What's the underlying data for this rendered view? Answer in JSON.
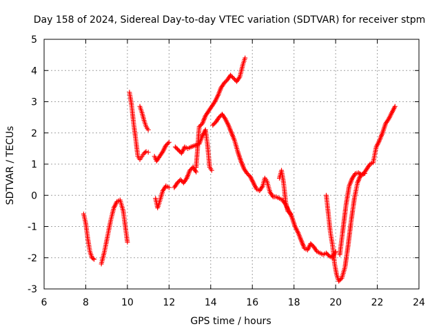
{
  "chart_data": {
    "type": "scatter",
    "title": "Day 158 of 2024, Sidereal Day-to-day VTEC variation (SDTVAR) for receiver stpm",
    "xlabel": "GPS time / hours",
    "ylabel": "SDTVAR / TECUs",
    "xlim": [
      6,
      24
    ],
    "ylim": [
      -3,
      5
    ],
    "xticks": [
      "6",
      "8",
      "10",
      "12",
      "14",
      "16",
      "18",
      "20",
      "22",
      "24"
    ],
    "yticks": [
      "-3",
      "-2",
      "-1",
      "0",
      "1",
      "2",
      "3",
      "4",
      "5"
    ],
    "grid": true,
    "marker": "plus",
    "color": "#ff0000",
    "series": [
      {
        "name": "stpm",
        "segments": [
          [
            [
              7.9,
              -0.6
            ],
            [
              8.0,
              -0.9
            ],
            [
              8.1,
              -1.4
            ],
            [
              8.2,
              -1.8
            ],
            [
              8.3,
              -2.0
            ],
            [
              8.4,
              -2.05
            ]
          ],
          [
            [
              8.75,
              -2.2
            ],
            [
              8.9,
              -1.8
            ],
            [
              9.05,
              -1.3
            ],
            [
              9.2,
              -0.8
            ],
            [
              9.35,
              -0.4
            ],
            [
              9.5,
              -0.2
            ],
            [
              9.65,
              -0.15
            ],
            [
              9.8,
              -0.5
            ],
            [
              9.9,
              -1.0
            ],
            [
              10.0,
              -1.5
            ]
          ],
          [
            [
              10.1,
              3.3
            ],
            [
              10.2,
              2.9
            ],
            [
              10.3,
              2.3
            ],
            [
              10.4,
              1.8
            ],
            [
              10.5,
              1.25
            ],
            [
              10.6,
              1.15
            ],
            [
              10.7,
              1.25
            ],
            [
              10.8,
              1.35
            ],
            [
              10.9,
              1.4
            ],
            [
              11.0,
              1.38
            ]
          ],
          [
            [
              10.6,
              2.85
            ],
            [
              10.7,
              2.65
            ],
            [
              10.8,
              2.4
            ],
            [
              10.9,
              2.2
            ],
            [
              11.0,
              2.1
            ]
          ],
          [
            [
              11.35,
              -0.1
            ],
            [
              11.45,
              -0.4
            ],
            [
              11.55,
              -0.2
            ],
            [
              11.7,
              0.15
            ],
            [
              11.85,
              0.3
            ],
            [
              12.0,
              0.25
            ]
          ],
          [
            [
              11.3,
              1.25
            ],
            [
              11.4,
              1.1
            ],
            [
              11.55,
              1.25
            ],
            [
              11.7,
              1.4
            ],
            [
              11.85,
              1.6
            ],
            [
              12.0,
              1.7
            ]
          ],
          [
            [
              12.25,
              0.25
            ],
            [
              12.4,
              0.4
            ],
            [
              12.55,
              0.5
            ],
            [
              12.7,
              0.4
            ],
            [
              12.85,
              0.55
            ],
            [
              13.0,
              0.8
            ],
            [
              13.15,
              0.9
            ],
            [
              13.3,
              0.75
            ]
          ],
          [
            [
              12.3,
              1.55
            ],
            [
              12.45,
              1.45
            ],
            [
              12.6,
              1.35
            ],
            [
              12.75,
              1.55
            ],
            [
              12.9,
              1.5
            ],
            [
              13.05,
              1.55
            ],
            [
              13.25,
              1.6
            ],
            [
              13.45,
              1.65
            ],
            [
              13.6,
              1.9
            ],
            [
              13.75,
              2.1
            ],
            [
              13.85,
              1.6
            ],
            [
              13.95,
              0.9
            ],
            [
              14.05,
              0.8
            ]
          ],
          [
            [
              13.3,
              0.9
            ],
            [
              13.45,
              2.2
            ],
            [
              13.6,
              2.3
            ],
            [
              13.75,
              2.55
            ],
            [
              13.9,
              2.7
            ],
            [
              14.05,
              2.85
            ],
            [
              14.2,
              3.0
            ],
            [
              14.35,
              3.2
            ],
            [
              14.5,
              3.45
            ],
            [
              14.65,
              3.6
            ],
            [
              14.8,
              3.7
            ],
            [
              14.95,
              3.85
            ],
            [
              15.1,
              3.75
            ],
            [
              15.25,
              3.65
            ],
            [
              15.4,
              3.8
            ],
            [
              15.55,
              4.2
            ],
            [
              15.65,
              4.4
            ]
          ],
          [
            [
              14.1,
              2.25
            ],
            [
              14.25,
              2.35
            ],
            [
              14.4,
              2.5
            ],
            [
              14.55,
              2.6
            ],
            [
              14.7,
              2.45
            ],
            [
              14.85,
              2.25
            ],
            [
              15.0,
              2.0
            ],
            [
              15.15,
              1.75
            ],
            [
              15.3,
              1.4
            ],
            [
              15.45,
              1.1
            ],
            [
              15.6,
              0.85
            ],
            [
              15.75,
              0.7
            ],
            [
              15.9,
              0.6
            ],
            [
              16.05,
              0.4
            ],
            [
              16.2,
              0.2
            ],
            [
              16.35,
              0.15
            ],
            [
              16.5,
              0.3
            ],
            [
              16.6,
              0.55
            ],
            [
              16.7,
              0.45
            ],
            [
              16.85,
              0.1
            ],
            [
              17.0,
              -0.05
            ],
            [
              17.15,
              -0.05
            ],
            [
              17.3,
              -0.1
            ],
            [
              17.45,
              -0.15
            ],
            [
              17.6,
              -0.3
            ],
            [
              17.75,
              -0.5
            ],
            [
              17.9,
              -0.7
            ],
            [
              18.05,
              -1.0
            ],
            [
              18.2,
              -1.2
            ],
            [
              18.35,
              -1.45
            ],
            [
              18.5,
              -1.7
            ],
            [
              18.65,
              -1.75
            ],
            [
              18.8,
              -1.55
            ],
            [
              18.95,
              -1.65
            ],
            [
              19.1,
              -1.8
            ],
            [
              19.25,
              -1.85
            ],
            [
              19.4,
              -1.9
            ],
            [
              19.55,
              -1.85
            ],
            [
              19.7,
              -1.95
            ],
            [
              19.85,
              -2.0
            ],
            [
              20.0,
              -1.8
            ]
          ],
          [
            [
              17.3,
              0.55
            ],
            [
              17.4,
              0.8
            ],
            [
              17.5,
              0.4
            ],
            [
              17.6,
              -0.2
            ],
            [
              17.7,
              -0.5
            ],
            [
              17.85,
              -0.6
            ]
          ],
          [
            [
              19.55,
              0.0
            ],
            [
              19.65,
              -0.6
            ],
            [
              19.75,
              -1.2
            ],
            [
              19.85,
              -1.6
            ],
            [
              19.95,
              -2.2
            ],
            [
              20.05,
              -2.55
            ],
            [
              20.15,
              -2.75
            ],
            [
              20.3,
              -2.65
            ],
            [
              20.45,
              -2.3
            ],
            [
              20.6,
              -1.6
            ],
            [
              20.75,
              -0.8
            ],
            [
              20.9,
              -0.1
            ],
            [
              21.05,
              0.4
            ],
            [
              21.2,
              0.65
            ],
            [
              21.35,
              0.7
            ],
            [
              21.5,
              0.85
            ],
            [
              21.65,
              1.0
            ],
            [
              21.8,
              1.05
            ],
            [
              21.95,
              1.55
            ],
            [
              22.1,
              1.75
            ],
            [
              22.25,
              2.0
            ],
            [
              22.4,
              2.3
            ],
            [
              22.55,
              2.45
            ],
            [
              22.7,
              2.65
            ],
            [
              22.85,
              2.85
            ]
          ],
          [
            [
              20.2,
              -1.9
            ],
            [
              20.35,
              -1.1
            ],
            [
              20.5,
              -0.3
            ],
            [
              20.65,
              0.3
            ],
            [
              20.8,
              0.55
            ],
            [
              20.95,
              0.7
            ],
            [
              21.1,
              0.72
            ],
            [
              21.25,
              0.65
            ],
            [
              21.4,
              0.7
            ]
          ]
        ]
      }
    ]
  }
}
